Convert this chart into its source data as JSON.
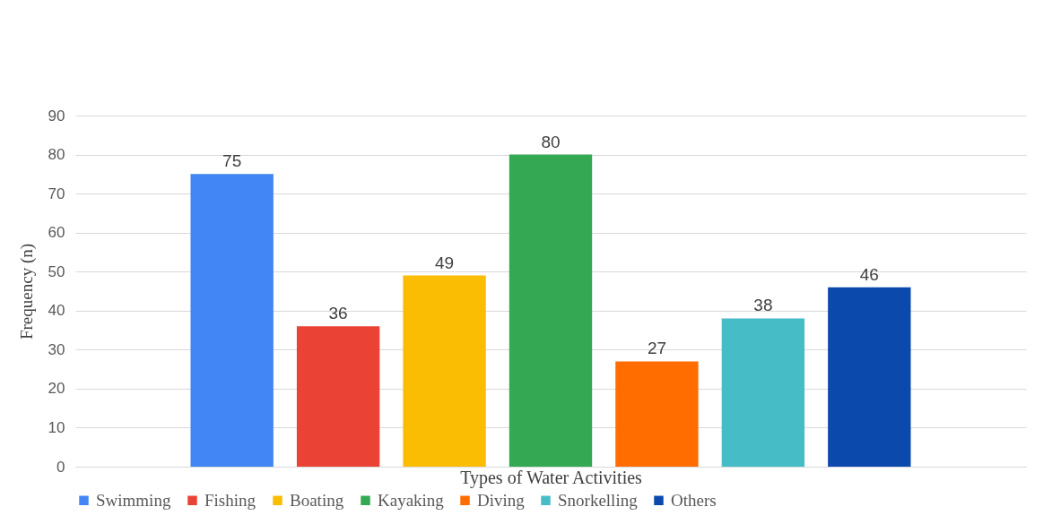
{
  "chart_data": {
    "type": "bar",
    "xlabel": "Types of Water Activities",
    "ylabel": "Frequency (n)",
    "categories": [
      null
    ],
    "series": [
      {
        "name": "Swimming",
        "color": "#4285f4",
        "values": [
          75
        ]
      },
      {
        "name": "Fishing",
        "color": "#ea4335",
        "values": [
          36
        ]
      },
      {
        "name": "Boating",
        "color": "#fbbc04",
        "values": [
          49
        ]
      },
      {
        "name": "Kayaking",
        "color": "#34a853",
        "values": [
          80
        ]
      },
      {
        "name": "Diving",
        "color": "#ff6d01",
        "values": [
          27
        ]
      },
      {
        "name": "Snorkelling",
        "color": "#46bdc6",
        "values": [
          38
        ]
      },
      {
        "name": "Others",
        "color": "#0b49ad",
        "values": [
          46
        ]
      }
    ],
    "ylim": [
      0,
      90
    ],
    "yticks": [
      0,
      10,
      20,
      30,
      40,
      50,
      60,
      70,
      80,
      90
    ],
    "grid": "y",
    "legend": "bottom",
    "data_labels": true,
    "tick_labels": "y"
  }
}
